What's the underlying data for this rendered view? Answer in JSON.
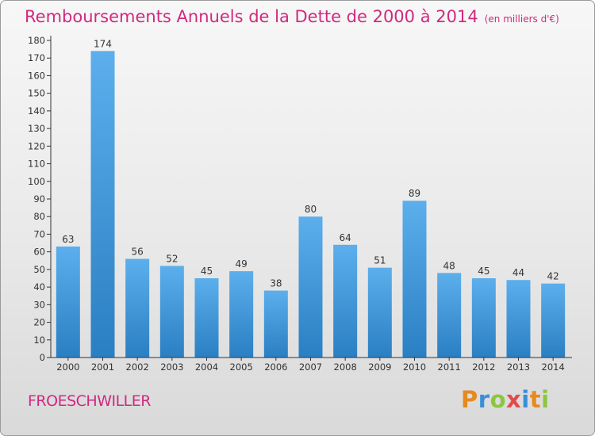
{
  "title": "Remboursements Annuels de la Dette de 2000 à 2014",
  "unit_note": "(en milliers d'€)",
  "commune": "FROESCHWILLER",
  "brand": {
    "letters": [
      "P",
      "r",
      "o",
      "x",
      "i",
      "t",
      "i"
    ],
    "colors": [
      "#e68a1e",
      "#3a8fd6",
      "#8cc63e",
      "#e34b4b",
      "#3a8fd6",
      "#e68a1e",
      "#8cc63e"
    ]
  },
  "chart_data": {
    "type": "bar",
    "categories": [
      "2000",
      "2001",
      "2002",
      "2003",
      "2004",
      "2005",
      "2006",
      "2007",
      "2008",
      "2009",
      "2010",
      "2011",
      "2012",
      "2013",
      "2014"
    ],
    "values": [
      63,
      174,
      56,
      52,
      45,
      49,
      38,
      80,
      64,
      51,
      89,
      48,
      45,
      44,
      42
    ],
    "ylim": [
      0,
      180
    ],
    "yticks": [
      0,
      10,
      20,
      30,
      40,
      50,
      60,
      70,
      80,
      90,
      100,
      110,
      120,
      130,
      140,
      150,
      160,
      170,
      180
    ],
    "grid": false,
    "colors": {
      "bar_top": "#5cafec",
      "bar_bottom": "#2a7fc3",
      "axis": "#333333"
    }
  }
}
